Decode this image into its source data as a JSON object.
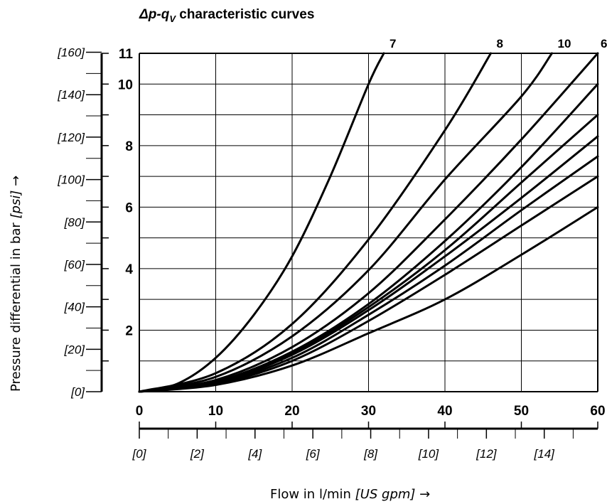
{
  "chart_data": {
    "type": "line",
    "title_parts": {
      "delta_p": "Δp",
      "dash_q": "-q",
      "sub_v": "V",
      "rest": " characteristic curves"
    },
    "xlabel": {
      "text": "Flow in l/min ",
      "secondary": "[US gpm]",
      "arrow": " →"
    },
    "ylabel": {
      "text": "Pressure differential in bar ",
      "secondary": "[psi]",
      "arrow": " →"
    },
    "x_primary": {
      "min": 0,
      "max": 60,
      "ticks": [
        0,
        10,
        20,
        30,
        40,
        50,
        60
      ],
      "tick_labels": [
        "0",
        "10",
        "20",
        "30",
        "40",
        "50",
        "60"
      ]
    },
    "x_secondary": {
      "unit": "US gpm",
      "min": 0,
      "max": 15.85,
      "ticks": [
        0,
        2,
        4,
        6,
        8,
        10,
        12,
        14
      ],
      "tick_labels": [
        "[0]",
        "[2]",
        "[4]",
        "[6]",
        "[8]",
        "[10]",
        "[12]",
        "[14]"
      ]
    },
    "y_primary": {
      "min": 0,
      "max": 11,
      "ticks": [
        2,
        4,
        6,
        8,
        10,
        11
      ],
      "tick_labels": [
        "2",
        "4",
        "6",
        "8",
        "10",
        "11"
      ]
    },
    "y_secondary": {
      "unit": "psi",
      "min": 0,
      "max": 159.5,
      "ticks": [
        0,
        20,
        40,
        60,
        80,
        100,
        120,
        140,
        160
      ],
      "tick_labels": [
        "[0]",
        "[20]",
        "[40]",
        "[60]",
        "[80]",
        "[100]",
        "[120]",
        "[140]",
        "[160]"
      ]
    },
    "grid": true,
    "grid_x": [
      10,
      20,
      30,
      40,
      50
    ],
    "grid_y": [
      1,
      2,
      3,
      4,
      5,
      6,
      7,
      8,
      9,
      10
    ],
    "series": [
      {
        "name": "7",
        "x": [
          0,
          5,
          10,
          15,
          20,
          25,
          30,
          32
        ],
        "y": [
          0,
          0.26,
          1.1,
          2.5,
          4.4,
          7.0,
          10.0,
          11.0
        ]
      },
      {
        "name": "8",
        "x": [
          0,
          10,
          20,
          30,
          40,
          46
        ],
        "y": [
          0,
          0.6,
          2.2,
          4.95,
          8.5,
          11.0
        ]
      },
      {
        "name": "10",
        "x": [
          0,
          10,
          20,
          30,
          40,
          50,
          54
        ],
        "y": [
          0,
          0.48,
          1.8,
          3.95,
          6.9,
          9.6,
          11.0
        ]
      },
      {
        "name": "6",
        "x": [
          0,
          10,
          20,
          30,
          40,
          50,
          60
        ],
        "y": [
          0,
          0.38,
          1.45,
          3.2,
          5.6,
          8.2,
          11.0
        ]
      },
      {
        "name": "",
        "x": [
          0,
          10,
          20,
          30,
          40,
          50,
          60
        ],
        "y": [
          0,
          0.33,
          1.3,
          2.85,
          4.9,
          7.3,
          10.0
        ]
      },
      {
        "name": "",
        "x": [
          0,
          10,
          20,
          30,
          40,
          50,
          60
        ],
        "y": [
          0,
          0.32,
          1.25,
          2.75,
          4.6,
          6.8,
          9.0
        ]
      },
      {
        "name": "",
        "x": [
          0,
          10,
          20,
          30,
          40,
          50,
          60
        ],
        "y": [
          0,
          0.3,
          1.2,
          2.65,
          4.4,
          6.3,
          8.3
        ]
      },
      {
        "name": "",
        "x": [
          0,
          10,
          20,
          30,
          40,
          50,
          60
        ],
        "y": [
          0,
          0.28,
          1.1,
          2.5,
          4.1,
          5.9,
          7.65
        ]
      },
      {
        "name": "",
        "x": [
          0,
          10,
          20,
          30,
          40,
          50,
          60
        ],
        "y": [
          0,
          0.25,
          1.0,
          2.3,
          3.8,
          5.4,
          7.0
        ]
      },
      {
        "name": "",
        "x": [
          0,
          10,
          20,
          30,
          40,
          50,
          60
        ],
        "y": [
          0,
          0.22,
          0.85,
          1.9,
          3.0,
          4.45,
          6.0
        ]
      }
    ]
  }
}
